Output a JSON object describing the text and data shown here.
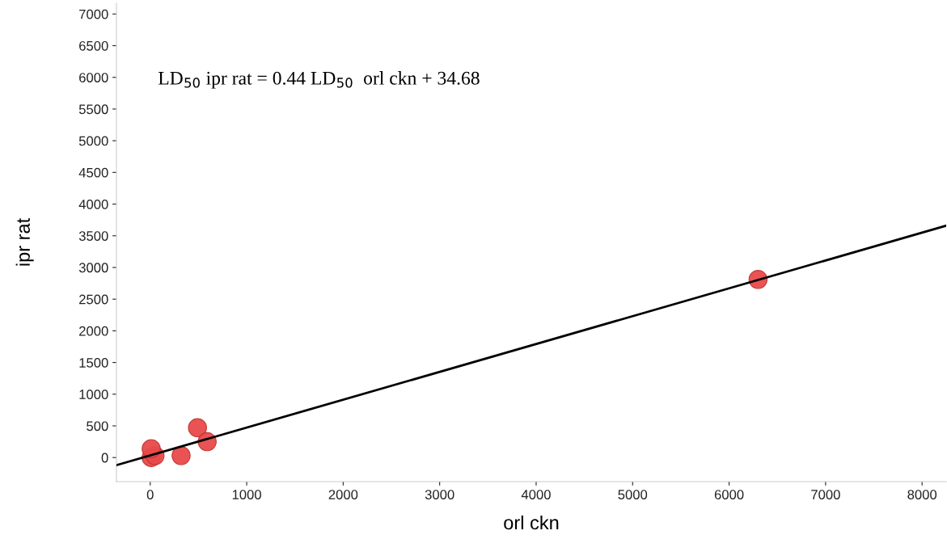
{
  "chart_data": {
    "type": "scatter",
    "xlabel": "orl ckn",
    "ylabel": "ipr rat",
    "annotations": [
      "LD$_{50}$ ipr rat = 0.44 LD$_{50}$  orl ckn + 34.68"
    ],
    "series": [
      {
        "color": "#e84a4a",
        "marker": "circle",
        "x": [
          6300,
          490,
          590,
          320,
          10,
          50,
          10
        ],
        "values": [
          2810,
          470,
          250,
          30,
          0,
          30,
          140
        ]
      },
      {
        "type": "line",
        "color": "#000000",
        "x": [
          -350,
          8250
        ],
        "values": [
          -120,
          3660
        ]
      }
    ],
    "xlim": [
      -350,
      8250
    ],
    "ylim": [
      -380,
      7170
    ],
    "xticks": [
      0,
      1000,
      2000,
      3000,
      4000,
      5000,
      6000,
      7000,
      8000
    ],
    "yticks": [
      0,
      500,
      1000,
      1500,
      2000,
      2500,
      3000,
      3500,
      4000,
      4500,
      5000,
      5500,
      6000,
      6500,
      7000
    ],
    "grid": false,
    "legend": false
  }
}
